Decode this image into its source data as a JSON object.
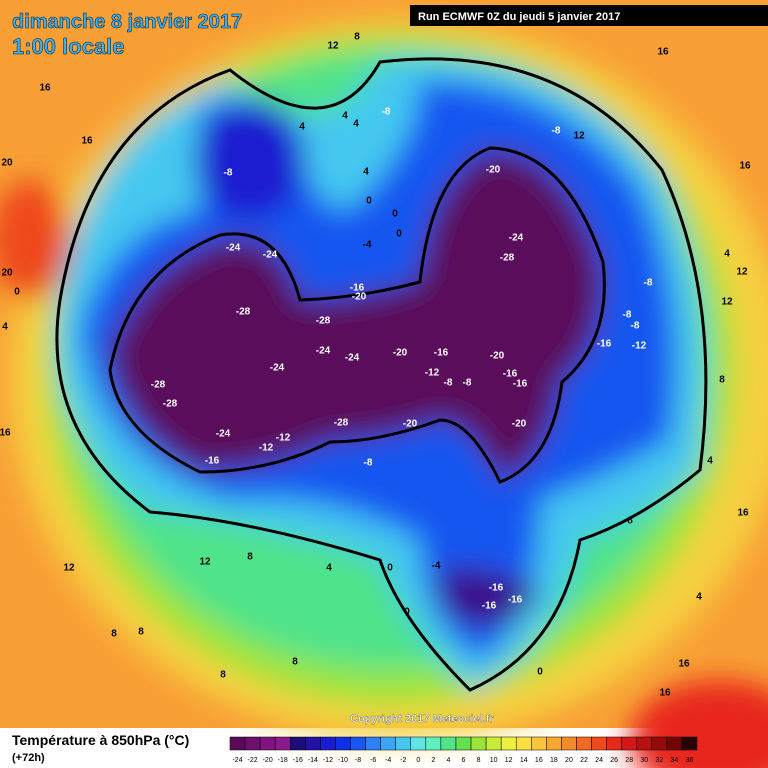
{
  "header": {
    "title": "dimanche 8 janvier 2017",
    "time": "1:00 locale",
    "run": "Run ECMWF 0Z du jeudi 5 janvier 2017"
  },
  "map": {
    "labels": [
      -8,
      -24,
      -24,
      -28,
      -28,
      -24,
      -24,
      -24,
      -28,
      -28,
      -24,
      -12,
      -12,
      -16,
      -28,
      -20,
      -20,
      -16,
      -20,
      -16,
      -12,
      -8,
      -8,
      -20,
      -16,
      -16,
      -20,
      -20,
      -24,
      -28,
      -8,
      -8,
      -8,
      -8,
      -8,
      -16,
      -12,
      -8,
      -16,
      -16,
      -16,
      -4,
      0,
      0,
      0,
      4,
      8,
      12,
      12,
      8,
      8,
      8,
      8,
      16,
      16,
      4,
      8,
      16,
      4,
      8,
      12,
      12,
      4,
      16,
      16,
      12,
      12,
      8,
      4,
      4,
      4,
      4,
      0,
      -4,
      0,
      0,
      16,
      16,
      20,
      20,
      0,
      4,
      16
    ]
  },
  "copyright": "Copyright 2017 Meteociel.fr",
  "legend": {
    "title": "Température à 850hPa (°C)",
    "subtitle": "(+72h)",
    "ticks": [
      -24,
      -22,
      -20,
      -18,
      -16,
      -14,
      -12,
      -10,
      -8,
      -6,
      -4,
      -2,
      0,
      2,
      4,
      6,
      8,
      10,
      12,
      14,
      16,
      18,
      20,
      22,
      24,
      26,
      28,
      30,
      32,
      34,
      36
    ],
    "colors": [
      "#5a0a5a",
      "#6d0f6d",
      "#7f1480",
      "#8c1a8c",
      "#1b0d7a",
      "#2311a6",
      "#1b1bd0",
      "#1030e6",
      "#1957f0",
      "#2f7ff5",
      "#3aa6f5",
      "#45c8f0",
      "#60e5e5",
      "#5ef0c0",
      "#50e38a",
      "#64e050",
      "#9be53a",
      "#c8ec3a",
      "#eef040",
      "#f8e040",
      "#f9c53a",
      "#f7a632",
      "#f58a2a",
      "#f26a22",
      "#ee4a1e",
      "#e8281a",
      "#d41818",
      "#b81010",
      "#960a0a",
      "#700505",
      "#2a0000"
    ]
  }
}
